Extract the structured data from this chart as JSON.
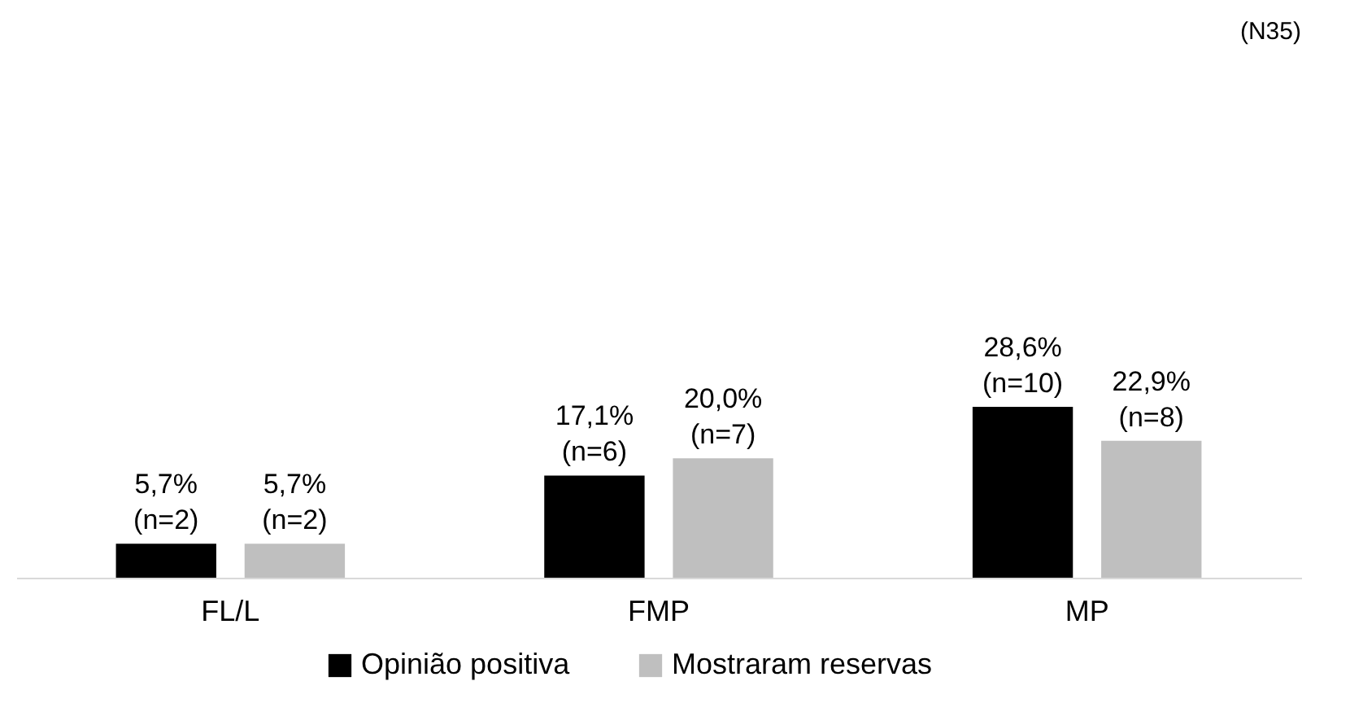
{
  "chart_data": {
    "type": "bar",
    "categories": [
      "FL/L",
      "FMP",
      "MP"
    ],
    "series": [
      {
        "name": "Opinião positiva",
        "color": "#000000",
        "values": [
          5.7,
          17.1,
          28.6
        ],
        "value_labels": [
          "5,7%\n(n=2)",
          "17,1%\n(n=6)",
          "28,6%\n(n=10)"
        ]
      },
      {
        "name": "Mostraram reservas",
        "color": "#bfbfbf",
        "values": [
          5.7,
          20.0,
          22.9
        ],
        "value_labels": [
          "5,7%\n(n=2)",
          "20,0%\n(n=7)",
          "22,9%\n(n=8)"
        ]
      }
    ],
    "annotations": [
      "(N35)"
    ],
    "legend": "bottom",
    "grid": false
  }
}
